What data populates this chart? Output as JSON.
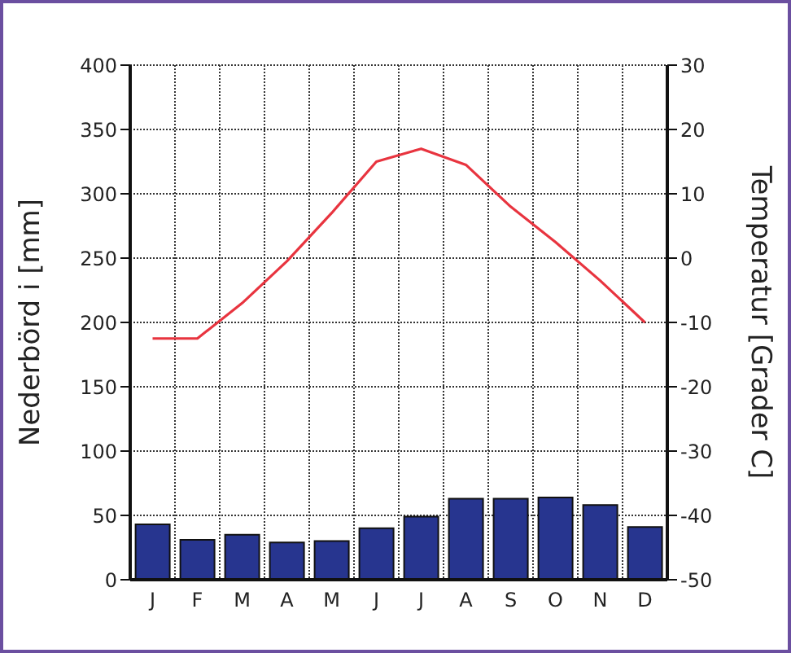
{
  "chart_data": {
    "type": "bar",
    "categories": [
      "J",
      "F",
      "M",
      "A",
      "M",
      "J",
      "J",
      "A",
      "S",
      "O",
      "N",
      "D"
    ],
    "ylabel": "Nederbörd i [mm]",
    "y2label": "Temperatur [Grader C]",
    "ylim": [
      0,
      400
    ],
    "yticks": [
      0,
      50,
      100,
      150,
      200,
      250,
      300,
      350,
      400
    ],
    "y2lim": [
      -50,
      30
    ],
    "y2ticks": [
      -50,
      -40,
      -30,
      -20,
      -10,
      0,
      10,
      20,
      30
    ],
    "grid": true,
    "series": [
      {
        "color": "#27358f",
        "values": [
          43,
          31,
          35,
          29,
          30,
          40,
          49,
          63,
          63,
          64,
          58,
          41
        ]
      },
      {
        "type": "line",
        "axis": "y2",
        "color": "#e8343f",
        "values": [
          -12.5,
          -12.5,
          -7,
          -0.5,
          7,
          15,
          17,
          14.5,
          8,
          2.5,
          -3.5,
          -10
        ]
      }
    ]
  }
}
